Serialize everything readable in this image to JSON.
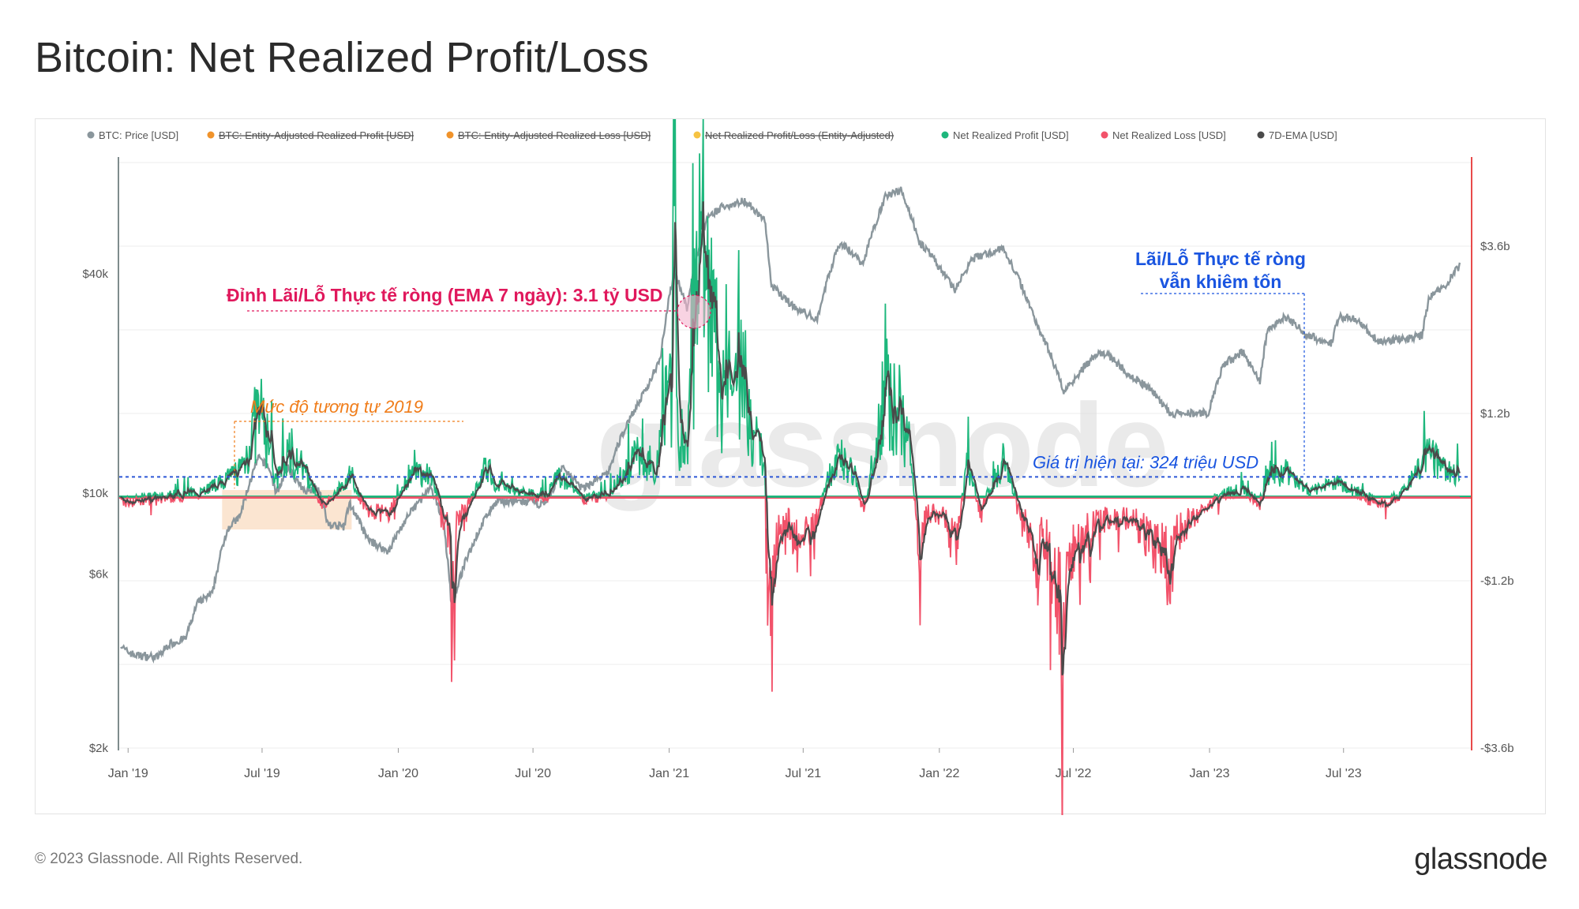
{
  "title": "Bitcoin: Net Realized Profit/Loss",
  "footer": {
    "copyright": "© 2023 Glassnode. All Rights Reserved.",
    "logo": "glassnode"
  },
  "watermark": "glassnode",
  "colors": {
    "price": "#8a969c",
    "profit": "#1db77c",
    "loss": "#f2526a",
    "ema": "#4a4a4a",
    "strike_orange": "#f0932b",
    "strike_yellow": "#f6c343",
    "annot_pink": "#e0185c",
    "annot_orange": "#f07d1a",
    "annot_blue": "#1a55e0",
    "right_axis": "#e84a4a"
  },
  "chart_data": {
    "type": "line",
    "legend": [
      {
        "label": "BTC: Price [USD]",
        "color": "#8a969c",
        "active": true
      },
      {
        "label": "BTC: Entity-Adjusted Realized Profit [USD]",
        "color": "#f0932b",
        "active": false
      },
      {
        "label": "BTC: Entity-Adjusted Realized Loss [USD]",
        "color": "#f0932b",
        "active": false
      },
      {
        "label": "Net Realized Profit/Loss (Entity-Adjusted)",
        "color": "#f6c343",
        "active": false
      },
      {
        "label": "Net Realized Profit [USD]",
        "color": "#1db77c",
        "active": true
      },
      {
        "label": "Net Realized Loss [USD]",
        "color": "#f2526a",
        "active": true
      },
      {
        "label": "7D-EMA [USD]",
        "color": "#4a4a4a",
        "active": true
      }
    ],
    "legend_position": "top",
    "x_ticks": [
      "Jan '19",
      "Jul '19",
      "Jan '20",
      "Jul '20",
      "Jan '21",
      "Jul '21",
      "Jan '22",
      "Jul '22",
      "Jan '23",
      "Jul '23"
    ],
    "x_range": [
      "2018-12-20",
      "2023-12-20"
    ],
    "left_axis": {
      "scale": "log",
      "ticks": [
        "$2k",
        "$6k",
        "$10k",
        "$40k"
      ],
      "range": [
        2000,
        80000
      ]
    },
    "right_axis": {
      "scale": "linear",
      "ticks": [
        "$3.6b",
        "$1.2b",
        "-$1.2b",
        "-$3.6b"
      ],
      "range": [
        -3.6,
        4.8
      ],
      "unit": "billion USD"
    },
    "price_points": [
      [
        "2018-12-20",
        3900
      ],
      [
        "2018-12-28",
        3700
      ],
      [
        "2019-01-10",
        3600
      ],
      [
        "2019-02-10",
        3550
      ],
      [
        "2019-02-25",
        3850
      ],
      [
        "2019-03-20",
        4000
      ],
      [
        "2019-04-05",
        5000
      ],
      [
        "2019-04-25",
        5300
      ],
      [
        "2019-05-15",
        8000
      ],
      [
        "2019-06-01",
        8600
      ],
      [
        "2019-06-26",
        12500
      ],
      [
        "2019-07-10",
        11800
      ],
      [
        "2019-07-20",
        10000
      ],
      [
        "2019-08-05",
        11700
      ],
      [
        "2019-08-25",
        10200
      ],
      [
        "2019-09-15",
        10300
      ],
      [
        "2019-09-28",
        8200
      ],
      [
        "2019-10-20",
        8100
      ],
      [
        "2019-10-27",
        9400
      ],
      [
        "2019-11-20",
        7500
      ],
      [
        "2019-12-18",
        6900
      ],
      [
        "2020-01-15",
        8700
      ],
      [
        "2020-02-13",
        10300
      ],
      [
        "2020-03-01",
        8600
      ],
      [
        "2020-03-13",
        4900
      ],
      [
        "2020-04-01",
        6500
      ],
      [
        "2020-05-01",
        8800
      ],
      [
        "2020-05-15",
        9500
      ],
      [
        "2020-06-15",
        9500
      ],
      [
        "2020-07-20",
        9300
      ],
      [
        "2020-08-10",
        11800
      ],
      [
        "2020-09-05",
        10300
      ],
      [
        "2020-10-10",
        11300
      ],
      [
        "2020-11-05",
        15500
      ],
      [
        "2020-12-01",
        19200
      ],
      [
        "2020-12-20",
        23500
      ],
      [
        "2021-01-08",
        40500
      ],
      [
        "2021-01-25",
        32000
      ],
      [
        "2021-02-20",
        56000
      ],
      [
        "2021-03-13",
        61000
      ],
      [
        "2021-04-14",
        63500
      ],
      [
        "2021-05-10",
        56000
      ],
      [
        "2021-05-19",
        37000
      ],
      [
        "2021-06-22",
        32000
      ],
      [
        "2021-07-20",
        30000
      ],
      [
        "2021-08-20",
        49000
      ],
      [
        "2021-09-20",
        42500
      ],
      [
        "2021-10-20",
        65000
      ],
      [
        "2021-11-10",
        68000
      ],
      [
        "2021-12-05",
        49000
      ],
      [
        "2022-01-22",
        36000
      ],
      [
        "2022-02-15",
        44000
      ],
      [
        "2022-03-28",
        47000
      ],
      [
        "2022-05-10",
        30000
      ],
      [
        "2022-06-18",
        19000
      ],
      [
        "2022-07-30",
        23800
      ],
      [
        "2022-08-15",
        24200
      ],
      [
        "2022-09-10",
        21500
      ],
      [
        "2022-10-15",
        19200
      ],
      [
        "2022-11-09",
        16500
      ],
      [
        "2022-12-31",
        16600
      ],
      [
        "2023-01-20",
        22500
      ],
      [
        "2023-02-15",
        24500
      ],
      [
        "2023-03-10",
        20000
      ],
      [
        "2023-03-20",
        28000
      ],
      [
        "2023-04-14",
        30500
      ],
      [
        "2023-05-15",
        27000
      ],
      [
        "2023-06-15",
        25800
      ],
      [
        "2023-06-25",
        30500
      ],
      [
        "2023-07-15",
        30300
      ],
      [
        "2023-08-17",
        26000
      ],
      [
        "2023-09-15",
        26500
      ],
      [
        "2023-10-15",
        27000
      ],
      [
        "2023-10-25",
        34500
      ],
      [
        "2023-11-15",
        37000
      ],
      [
        "2023-12-05",
        42000
      ]
    ],
    "net_pl_points_billion_usd": [
      [
        "2018-12-20",
        -0.08
      ],
      [
        "2019-02-01",
        -0.02
      ],
      [
        "2019-04-01",
        0.05
      ],
      [
        "2019-05-15",
        0.25
      ],
      [
        "2019-06-05",
        0.45
      ],
      [
        "2019-06-26",
        1.2
      ],
      [
        "2019-07-10",
        0.8
      ],
      [
        "2019-07-20",
        0.2
      ],
      [
        "2019-08-08",
        0.7
      ],
      [
        "2019-08-25",
        0.4
      ],
      [
        "2019-09-24",
        -0.15
      ],
      [
        "2019-10-10",
        0.1
      ],
      [
        "2019-10-27",
        0.3
      ],
      [
        "2019-11-20",
        -0.2
      ],
      [
        "2019-12-18",
        -0.25
      ],
      [
        "2020-01-15",
        0.3
      ],
      [
        "2020-02-13",
        0.35
      ],
      [
        "2020-03-12",
        -0.6
      ],
      [
        "2020-03-13",
        -1.8
      ],
      [
        "2020-03-20",
        -0.4
      ],
      [
        "2020-04-30",
        0.45
      ],
      [
        "2020-05-10",
        0.2
      ],
      [
        "2020-06-15",
        0.05
      ],
      [
        "2020-07-20",
        0.02
      ],
      [
        "2020-08-01",
        0.3
      ],
      [
        "2020-08-20",
        0.2
      ],
      [
        "2020-09-05",
        -0.05
      ],
      [
        "2020-10-10",
        0.05
      ],
      [
        "2020-10-25",
        0.25
      ],
      [
        "2020-11-20",
        0.6
      ],
      [
        "2020-12-15",
        0.4
      ],
      [
        "2020-12-28",
        1.8
      ],
      [
        "2021-01-04",
        1.6
      ],
      [
        "2021-01-08",
        5.8
      ],
      [
        "2021-01-11",
        1.0
      ],
      [
        "2021-01-25",
        0.6
      ],
      [
        "2021-02-08",
        2.8
      ],
      [
        "2021-02-20",
        3.0
      ],
      [
        "2021-03-13",
        1.5
      ],
      [
        "2021-04-14",
        1.9
      ],
      [
        "2021-04-20",
        0.9
      ],
      [
        "2021-05-10",
        0.6
      ],
      [
        "2021-05-12",
        -0.7
      ],
      [
        "2021-05-19",
        -2.0
      ],
      [
        "2021-05-25",
        -0.6
      ],
      [
        "2021-06-10",
        -0.3
      ],
      [
        "2021-06-22",
        -0.7
      ],
      [
        "2021-07-20",
        -0.3
      ],
      [
        "2021-08-01",
        0.2
      ],
      [
        "2021-08-20",
        0.55
      ],
      [
        "2021-09-07",
        0.4
      ],
      [
        "2021-09-20",
        -0.2
      ],
      [
        "2021-10-05",
        0.5
      ],
      [
        "2021-10-20",
        1.6
      ],
      [
        "2021-11-10",
        1.2
      ],
      [
        "2021-11-25",
        0.5
      ],
      [
        "2021-12-04",
        -0.8
      ],
      [
        "2021-12-15",
        -0.2
      ],
      [
        "2022-01-10",
        -0.3
      ],
      [
        "2022-01-22",
        -0.8
      ],
      [
        "2022-02-08",
        0.5
      ],
      [
        "2022-02-25",
        -0.2
      ],
      [
        "2022-03-28",
        0.5
      ],
      [
        "2022-04-25",
        -0.3
      ],
      [
        "2022-05-09",
        -0.7
      ],
      [
        "2022-05-12",
        -1.5
      ],
      [
        "2022-05-20",
        -0.5
      ],
      [
        "2022-06-13",
        -1.6
      ],
      [
        "2022-06-18",
        -3.3
      ],
      [
        "2022-06-25",
        -0.8
      ],
      [
        "2022-07-15",
        -0.6
      ],
      [
        "2022-08-15",
        -0.3
      ],
      [
        "2022-09-20",
        -0.3
      ],
      [
        "2022-11-09",
        -1.0
      ],
      [
        "2022-11-20",
        -0.5
      ],
      [
        "2022-12-20",
        -0.2
      ],
      [
        "2023-01-20",
        0.05
      ],
      [
        "2023-02-15",
        0.1
      ],
      [
        "2023-03-10",
        -0.1
      ],
      [
        "2023-03-20",
        0.4
      ],
      [
        "2023-04-14",
        0.35
      ],
      [
        "2023-05-15",
        0.1
      ],
      [
        "2023-06-22",
        0.2
      ],
      [
        "2023-07-15",
        0.1
      ],
      [
        "2023-08-17",
        -0.1
      ],
      [
        "2023-09-15",
        0.0
      ],
      [
        "2023-10-24",
        0.6
      ],
      [
        "2023-11-15",
        0.35
      ],
      [
        "2023-12-05",
        0.324
      ]
    ],
    "annotations": [
      {
        "text": "Đỉnh Lãi/Lỗ Thực tế ròng (EMA 7 ngày): 3.1 tỷ USD",
        "color": "#e0185c"
      },
      {
        "text": "Mức độ tương tự 2019",
        "color": "#f07d1a"
      },
      {
        "text": "Lãi/Lỗ Thực tế ròng",
        "color": "#1a55e0"
      },
      {
        "text": "vẫn khiêm tốn",
        "color": "#1a55e0"
      },
      {
        "text": "Giá trị hiện tại: 324 triệu USD",
        "color": "#1a55e0"
      }
    ]
  }
}
